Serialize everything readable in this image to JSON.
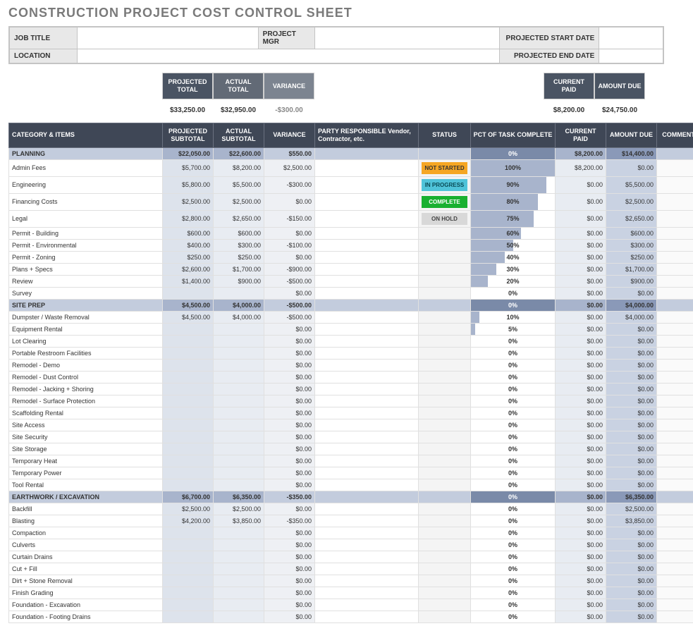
{
  "title": "CONSTRUCTION PROJECT COST CONTROL SHEET",
  "header": {
    "labels": {
      "job_title": "JOB TITLE",
      "project_mgr": "PROJECT MGR",
      "projected_start": "PROJECTED START DATE",
      "location": "LOCATION",
      "projected_end": "PROJECTED END DATE"
    },
    "values": {
      "job_title": "",
      "project_mgr": "",
      "projected_start": "",
      "location": "",
      "projected_end": ""
    }
  },
  "summary": {
    "labels": {
      "projected_total": "PROJECTED TOTAL",
      "actual_total": "ACTUAL TOTAL",
      "variance": "VARIANCE",
      "current_paid": "CURRENT PAID",
      "amount_due": "AMOUNT DUE"
    },
    "values": {
      "projected_total": "$33,250.00",
      "actual_total": "$32,950.00",
      "variance": "-$300.00",
      "current_paid": "$8,200.00",
      "amount_due": "$24,750.00"
    }
  },
  "columns": {
    "category": "CATEGORY & ITEMS",
    "projected": "PROJECTED SUBTOTAL",
    "actual": "ACTUAL SUBTOTAL",
    "variance": "VARIANCE",
    "party": "PARTY RESPONSIBLE Vendor, Contractor, etc.",
    "status": "STATUS",
    "pct": "PCT OF TASK COMPLETE",
    "paid": "CURRENT PAID",
    "due": "AMOUNT DUE",
    "comments": "COMMENTS"
  },
  "status_map": {
    "NOT STARTED": "st-notstarted",
    "IN PROGRESS": "st-inprogress",
    "COMPLETE": "st-complete",
    "ON HOLD": "st-onhold"
  },
  "colors": {
    "header_dark": "#3f4756",
    "section_bg": "#c3ccdd",
    "section_pct": "#7a8aa8",
    "proj_col": "#dde3ec",
    "act_col": "#e8ecf2",
    "var_col": "#eef0f4",
    "due_col": "#c9d2e2",
    "bar": "#a8b4cc"
  },
  "rows": [
    {
      "type": "section",
      "name": "PLANNING",
      "proj": "$22,050.00",
      "act": "$22,600.00",
      "var": "$550.00",
      "pct": 0,
      "paid": "$8,200.00",
      "due": "$14,400.00"
    },
    {
      "type": "item",
      "name": "Admin Fees",
      "proj": "$5,700.00",
      "act": "$8,200.00",
      "var": "$2,500.00",
      "status": "NOT STARTED",
      "pct": 100,
      "paid": "$8,200.00",
      "due": "$0.00"
    },
    {
      "type": "item",
      "name": "Engineering",
      "proj": "$5,800.00",
      "act": "$5,500.00",
      "var": "-$300.00",
      "status": "IN PROGRESS",
      "pct": 90,
      "paid": "$0.00",
      "due": "$5,500.00"
    },
    {
      "type": "item",
      "name": "Financing Costs",
      "proj": "$2,500.00",
      "act": "$2,500.00",
      "var": "$0.00",
      "status": "COMPLETE",
      "pct": 80,
      "paid": "$0.00",
      "due": "$2,500.00"
    },
    {
      "type": "item",
      "name": "Legal",
      "proj": "$2,800.00",
      "act": "$2,650.00",
      "var": "-$150.00",
      "status": "ON HOLD",
      "pct": 75,
      "paid": "$0.00",
      "due": "$2,650.00"
    },
    {
      "type": "item",
      "name": "Permit - Building",
      "proj": "$600.00",
      "act": "$600.00",
      "var": "$0.00",
      "pct": 60,
      "paid": "$0.00",
      "due": "$600.00"
    },
    {
      "type": "item",
      "name": "Permit - Environmental",
      "proj": "$400.00",
      "act": "$300.00",
      "var": "-$100.00",
      "pct": 50,
      "paid": "$0.00",
      "due": "$300.00"
    },
    {
      "type": "item",
      "name": "Permit - Zoning",
      "proj": "$250.00",
      "act": "$250.00",
      "var": "$0.00",
      "pct": 40,
      "paid": "$0.00",
      "due": "$250.00"
    },
    {
      "type": "item",
      "name": "Plans + Specs",
      "proj": "$2,600.00",
      "act": "$1,700.00",
      "var": "-$900.00",
      "pct": 30,
      "paid": "$0.00",
      "due": "$1,700.00"
    },
    {
      "type": "item",
      "name": "Review",
      "proj": "$1,400.00",
      "act": "$900.00",
      "var": "-$500.00",
      "pct": 20,
      "paid": "$0.00",
      "due": "$900.00"
    },
    {
      "type": "item",
      "name": "Survey",
      "proj": "",
      "act": "",
      "var": "$0.00",
      "pct": 0,
      "paid": "$0.00",
      "due": "$0.00"
    },
    {
      "type": "section",
      "name": "SITE PREP",
      "proj": "$4,500.00",
      "act": "$4,000.00",
      "var": "-$500.00",
      "pct": 0,
      "paid": "$0.00",
      "due": "$4,000.00"
    },
    {
      "type": "item",
      "name": "Dumpster / Waste Removal",
      "proj": "$4,500.00",
      "act": "$4,000.00",
      "var": "-$500.00",
      "pct": 10,
      "paid": "$0.00",
      "due": "$4,000.00"
    },
    {
      "type": "item",
      "name": "Equipment Rental",
      "proj": "",
      "act": "",
      "var": "$0.00",
      "pct": 5,
      "paid": "$0.00",
      "due": "$0.00"
    },
    {
      "type": "item",
      "name": "Lot Clearing",
      "proj": "",
      "act": "",
      "var": "$0.00",
      "pct": 0,
      "paid": "$0.00",
      "due": "$0.00"
    },
    {
      "type": "item",
      "name": "Portable Restroom Facilities",
      "proj": "",
      "act": "",
      "var": "$0.00",
      "pct": 0,
      "paid": "$0.00",
      "due": "$0.00"
    },
    {
      "type": "item",
      "name": "Remodel - Demo",
      "proj": "",
      "act": "",
      "var": "$0.00",
      "pct": 0,
      "paid": "$0.00",
      "due": "$0.00"
    },
    {
      "type": "item",
      "name": "Remodel - Dust Control",
      "proj": "",
      "act": "",
      "var": "$0.00",
      "pct": 0,
      "paid": "$0.00",
      "due": "$0.00"
    },
    {
      "type": "item",
      "name": "Remodel - Jacking + Shoring",
      "proj": "",
      "act": "",
      "var": "$0.00",
      "pct": 0,
      "paid": "$0.00",
      "due": "$0.00"
    },
    {
      "type": "item",
      "name": "Remodel - Surface Protection",
      "proj": "",
      "act": "",
      "var": "$0.00",
      "pct": 0,
      "paid": "$0.00",
      "due": "$0.00"
    },
    {
      "type": "item",
      "name": "Scaffolding Rental",
      "proj": "",
      "act": "",
      "var": "$0.00",
      "pct": 0,
      "paid": "$0.00",
      "due": "$0.00"
    },
    {
      "type": "item",
      "name": "Site Access",
      "proj": "",
      "act": "",
      "var": "$0.00",
      "pct": 0,
      "paid": "$0.00",
      "due": "$0.00"
    },
    {
      "type": "item",
      "name": "Site Security",
      "proj": "",
      "act": "",
      "var": "$0.00",
      "pct": 0,
      "paid": "$0.00",
      "due": "$0.00"
    },
    {
      "type": "item",
      "name": "Site Storage",
      "proj": "",
      "act": "",
      "var": "$0.00",
      "pct": 0,
      "paid": "$0.00",
      "due": "$0.00"
    },
    {
      "type": "item",
      "name": "Temporary Heat",
      "proj": "",
      "act": "",
      "var": "$0.00",
      "pct": 0,
      "paid": "$0.00",
      "due": "$0.00"
    },
    {
      "type": "item",
      "name": "Temporary Power",
      "proj": "",
      "act": "",
      "var": "$0.00",
      "pct": 0,
      "paid": "$0.00",
      "due": "$0.00"
    },
    {
      "type": "item",
      "name": "Tool Rental",
      "proj": "",
      "act": "",
      "var": "$0.00",
      "pct": 0,
      "paid": "$0.00",
      "due": "$0.00"
    },
    {
      "type": "section",
      "name": "EARTHWORK / EXCAVATION",
      "proj": "$6,700.00",
      "act": "$6,350.00",
      "var": "-$350.00",
      "pct": 0,
      "paid": "$0.00",
      "due": "$6,350.00"
    },
    {
      "type": "item",
      "name": "Backfill",
      "proj": "$2,500.00",
      "act": "$2,500.00",
      "var": "$0.00",
      "pct": 0,
      "paid": "$0.00",
      "due": "$2,500.00"
    },
    {
      "type": "item",
      "name": "Blasting",
      "proj": "$4,200.00",
      "act": "$3,850.00",
      "var": "-$350.00",
      "pct": 0,
      "paid": "$0.00",
      "due": "$3,850.00"
    },
    {
      "type": "item",
      "name": "Compaction",
      "proj": "",
      "act": "",
      "var": "$0.00",
      "pct": 0,
      "paid": "$0.00",
      "due": "$0.00"
    },
    {
      "type": "item",
      "name": "Culverts",
      "proj": "",
      "act": "",
      "var": "$0.00",
      "pct": 0,
      "paid": "$0.00",
      "due": "$0.00"
    },
    {
      "type": "item",
      "name": "Curtain Drains",
      "proj": "",
      "act": "",
      "var": "$0.00",
      "pct": 0,
      "paid": "$0.00",
      "due": "$0.00"
    },
    {
      "type": "item",
      "name": "Cut + Fill",
      "proj": "",
      "act": "",
      "var": "$0.00",
      "pct": 0,
      "paid": "$0.00",
      "due": "$0.00"
    },
    {
      "type": "item",
      "name": "Dirt + Stone Removal",
      "proj": "",
      "act": "",
      "var": "$0.00",
      "pct": 0,
      "paid": "$0.00",
      "due": "$0.00"
    },
    {
      "type": "item",
      "name": "Finish Grading",
      "proj": "",
      "act": "",
      "var": "$0.00",
      "pct": 0,
      "paid": "$0.00",
      "due": "$0.00"
    },
    {
      "type": "item",
      "name": "Foundation - Excavation",
      "proj": "",
      "act": "",
      "var": "$0.00",
      "pct": 0,
      "paid": "$0.00",
      "due": "$0.00"
    },
    {
      "type": "item",
      "name": "Foundation - Footing Drains",
      "proj": "",
      "act": "",
      "var": "$0.00",
      "pct": 0,
      "paid": "$0.00",
      "due": "$0.00"
    }
  ]
}
